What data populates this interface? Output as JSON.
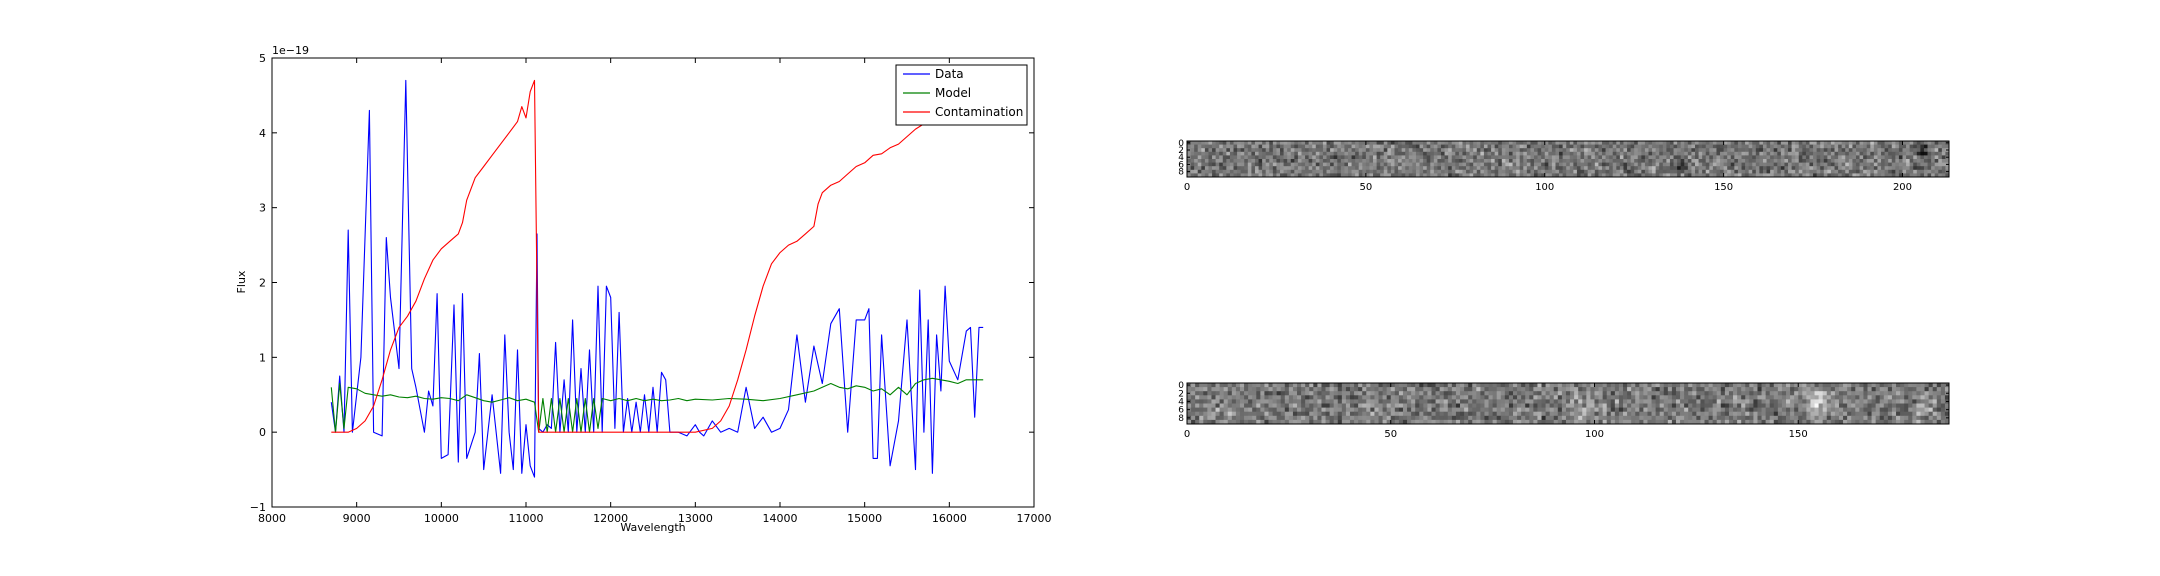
{
  "chart_data": [
    {
      "type": "line",
      "xlabel": "Wavelength",
      "ylabel": "Flux",
      "offset_text": "1e−19",
      "xlim": [
        8000,
        17000
      ],
      "ylim": [
        -1,
        5
      ],
      "xticks": [
        "8000",
        "9000",
        "10000",
        "11000",
        "12000",
        "13000",
        "14000",
        "15000",
        "16000",
        "17000"
      ],
      "yticks": [
        "−1",
        "0",
        "1",
        "2",
        "3",
        "4",
        "5"
      ],
      "legend_placement": "top-right",
      "series": [
        {
          "name": "Data",
          "color": "#0000ff",
          "points": [
            [
              8700,
              0.4
            ],
            [
              8750,
              0.0
            ],
            [
              8800,
              0.75
            ],
            [
              8850,
              0.0
            ],
            [
              8900,
              2.7
            ],
            [
              8950,
              0.0
            ],
            [
              9050,
              1.0
            ],
            [
              9150,
              4.3
            ],
            [
              9200,
              0.0
            ],
            [
              9300,
              -0.05
            ],
            [
              9350,
              2.6
            ],
            [
              9400,
              1.8
            ],
            [
              9500,
              0.85
            ],
            [
              9580,
              4.7
            ],
            [
              9650,
              0.85
            ],
            [
              9700,
              0.6
            ],
            [
              9800,
              0.0
            ],
            [
              9850,
              0.55
            ],
            [
              9900,
              0.35
            ],
            [
              9950,
              1.85
            ],
            [
              10000,
              -0.35
            ],
            [
              10080,
              -0.3
            ],
            [
              10150,
              1.7
            ],
            [
              10200,
              -0.4
            ],
            [
              10250,
              1.85
            ],
            [
              10300,
              -0.35
            ],
            [
              10400,
              0.0
            ],
            [
              10450,
              1.05
            ],
            [
              10500,
              -0.5
            ],
            [
              10600,
              0.5
            ],
            [
              10700,
              -0.55
            ],
            [
              10750,
              1.3
            ],
            [
              10800,
              0.0
            ],
            [
              10850,
              -0.5
            ],
            [
              10900,
              1.1
            ],
            [
              10950,
              -0.55
            ],
            [
              11000,
              0.1
            ],
            [
              11050,
              -0.45
            ],
            [
              11100,
              -0.6
            ],
            [
              11130,
              2.65
            ],
            [
              11150,
              0.05
            ],
            [
              11200,
              0.0
            ],
            [
              11250,
              0.1
            ],
            [
              11300,
              0.05
            ],
            [
              11350,
              1.2
            ],
            [
              11400,
              0.0
            ],
            [
              11450,
              0.7
            ],
            [
              11500,
              0.0
            ],
            [
              11550,
              1.5
            ],
            [
              11600,
              0.0
            ],
            [
              11650,
              0.85
            ],
            [
              11700,
              0.0
            ],
            [
              11750,
              1.1
            ],
            [
              11800,
              0.0
            ],
            [
              11850,
              1.95
            ],
            [
              11900,
              0.0
            ],
            [
              11950,
              1.95
            ],
            [
              12000,
              1.8
            ],
            [
              12050,
              0.05
            ],
            [
              12100,
              1.6
            ],
            [
              12150,
              0.0
            ],
            [
              12200,
              0.45
            ],
            [
              12250,
              0.0
            ],
            [
              12300,
              0.4
            ],
            [
              12350,
              0.0
            ],
            [
              12400,
              0.5
            ],
            [
              12450,
              0.0
            ],
            [
              12500,
              0.6
            ],
            [
              12550,
              0.0
            ],
            [
              12600,
              0.8
            ],
            [
              12650,
              0.7
            ],
            [
              12700,
              0.0
            ],
            [
              12800,
              0.0
            ],
            [
              12900,
              -0.05
            ],
            [
              13000,
              0.1
            ],
            [
              13050,
              0.0
            ],
            [
              13100,
              -0.05
            ],
            [
              13200,
              0.15
            ],
            [
              13300,
              0.0
            ],
            [
              13400,
              0.05
            ],
            [
              13500,
              0.0
            ],
            [
              13600,
              0.6
            ],
            [
              13700,
              0.05
            ],
            [
              13800,
              0.2
            ],
            [
              13900,
              0.0
            ],
            [
              14000,
              0.05
            ],
            [
              14100,
              0.3
            ],
            [
              14200,
              1.3
            ],
            [
              14300,
              0.4
            ],
            [
              14400,
              1.15
            ],
            [
              14500,
              0.65
            ],
            [
              14600,
              1.45
            ],
            [
              14700,
              1.65
            ],
            [
              14800,
              0.0
            ],
            [
              14900,
              1.5
            ],
            [
              15000,
              1.5
            ],
            [
              15050,
              1.65
            ],
            [
              15100,
              -0.35
            ],
            [
              15150,
              -0.35
            ],
            [
              15200,
              1.3
            ],
            [
              15300,
              -0.45
            ],
            [
              15400,
              0.15
            ],
            [
              15500,
              1.5
            ],
            [
              15600,
              -0.5
            ],
            [
              15650,
              1.9
            ],
            [
              15700,
              0.0
            ],
            [
              15750,
              1.5
            ],
            [
              15800,
              -0.55
            ],
            [
              15850,
              1.3
            ],
            [
              15900,
              0.55
            ],
            [
              15950,
              1.95
            ],
            [
              16000,
              0.95
            ],
            [
              16100,
              0.7
            ],
            [
              16200,
              1.35
            ],
            [
              16250,
              1.4
            ],
            [
              16300,
              0.2
            ],
            [
              16350,
              1.4
            ],
            [
              16400,
              1.4
            ]
          ]
        },
        {
          "name": "Model",
          "color": "#008000",
          "points": [
            [
              8700,
              0.6
            ],
            [
              8750,
              0.0
            ],
            [
              8800,
              0.65
            ],
            [
              8850,
              0.05
            ],
            [
              8900,
              0.6
            ],
            [
              9000,
              0.58
            ],
            [
              9100,
              0.52
            ],
            [
              9200,
              0.5
            ],
            [
              9300,
              0.48
            ],
            [
              9400,
              0.5
            ],
            [
              9500,
              0.47
            ],
            [
              9600,
              0.46
            ],
            [
              9700,
              0.48
            ],
            [
              9800,
              0.45
            ],
            [
              9900,
              0.44
            ],
            [
              10000,
              0.46
            ],
            [
              10100,
              0.45
            ],
            [
              10200,
              0.42
            ],
            [
              10300,
              0.5
            ],
            [
              10400,
              0.46
            ],
            [
              10500,
              0.42
            ],
            [
              10600,
              0.4
            ],
            [
              10700,
              0.43
            ],
            [
              10800,
              0.46
            ],
            [
              10900,
              0.42
            ],
            [
              11000,
              0.44
            ],
            [
              11100,
              0.4
            ],
            [
              11150,
              0.0
            ],
            [
              11200,
              0.45
            ],
            [
              11250,
              0.0
            ],
            [
              11300,
              0.45
            ],
            [
              11350,
              0.0
            ],
            [
              11400,
              0.45
            ],
            [
              11450,
              0.0
            ],
            [
              11500,
              0.45
            ],
            [
              11550,
              0.0
            ],
            [
              11600,
              0.45
            ],
            [
              11650,
              0.0
            ],
            [
              11700,
              0.45
            ],
            [
              11750,
              0.0
            ],
            [
              11800,
              0.45
            ],
            [
              11850,
              0.05
            ],
            [
              11900,
              0.45
            ],
            [
              12000,
              0.42
            ],
            [
              12100,
              0.45
            ],
            [
              12200,
              0.42
            ],
            [
              12300,
              0.45
            ],
            [
              12400,
              0.42
            ],
            [
              12500,
              0.44
            ],
            [
              12600,
              0.42
            ],
            [
              12700,
              0.43
            ],
            [
              12800,
              0.45
            ],
            [
              12900,
              0.42
            ],
            [
              13000,
              0.44
            ],
            [
              13200,
              0.43
            ],
            [
              13400,
              0.45
            ],
            [
              13600,
              0.44
            ],
            [
              13800,
              0.42
            ],
            [
              14000,
              0.45
            ],
            [
              14200,
              0.5
            ],
            [
              14400,
              0.55
            ],
            [
              14500,
              0.6
            ],
            [
              14600,
              0.65
            ],
            [
              14700,
              0.6
            ],
            [
              14800,
              0.58
            ],
            [
              14900,
              0.62
            ],
            [
              15000,
              0.6
            ],
            [
              15100,
              0.55
            ],
            [
              15200,
              0.58
            ],
            [
              15300,
              0.5
            ],
            [
              15400,
              0.6
            ],
            [
              15500,
              0.5
            ],
            [
              15600,
              0.65
            ],
            [
              15700,
              0.7
            ],
            [
              15800,
              0.72
            ],
            [
              15900,
              0.7
            ],
            [
              16000,
              0.68
            ],
            [
              16100,
              0.65
            ],
            [
              16200,
              0.7
            ],
            [
              16300,
              0.7
            ],
            [
              16400,
              0.7
            ]
          ]
        },
        {
          "name": "Contamination",
          "color": "#ff0000",
          "points": [
            [
              8700,
              0.0
            ],
            [
              8800,
              0.0
            ],
            [
              8900,
              0.0
            ],
            [
              9000,
              0.05
            ],
            [
              9100,
              0.15
            ],
            [
              9200,
              0.35
            ],
            [
              9300,
              0.7
            ],
            [
              9400,
              1.1
            ],
            [
              9500,
              1.4
            ],
            [
              9600,
              1.55
            ],
            [
              9700,
              1.75
            ],
            [
              9800,
              2.05
            ],
            [
              9900,
              2.3
            ],
            [
              10000,
              2.45
            ],
            [
              10100,
              2.55
            ],
            [
              10200,
              2.65
            ],
            [
              10250,
              2.8
            ],
            [
              10300,
              3.1
            ],
            [
              10400,
              3.4
            ],
            [
              10500,
              3.55
            ],
            [
              10600,
              3.7
            ],
            [
              10700,
              3.85
            ],
            [
              10800,
              4.0
            ],
            [
              10900,
              4.15
            ],
            [
              10950,
              4.35
            ],
            [
              11000,
              4.2
            ],
            [
              11050,
              4.55
            ],
            [
              11100,
              4.7
            ],
            [
              11150,
              0.0
            ],
            [
              11400,
              0.0
            ],
            [
              11800,
              0.0
            ],
            [
              12200,
              0.0
            ],
            [
              12600,
              0.0
            ],
            [
              13000,
              0.0
            ],
            [
              13200,
              0.05
            ],
            [
              13300,
              0.15
            ],
            [
              13400,
              0.35
            ],
            [
              13500,
              0.7
            ],
            [
              13600,
              1.1
            ],
            [
              13700,
              1.55
            ],
            [
              13800,
              1.95
            ],
            [
              13900,
              2.25
            ],
            [
              14000,
              2.4
            ],
            [
              14100,
              2.5
            ],
            [
              14200,
              2.55
            ],
            [
              14300,
              2.65
            ],
            [
              14400,
              2.75
            ],
            [
              14450,
              3.05
            ],
            [
              14500,
              3.2
            ],
            [
              14600,
              3.3
            ],
            [
              14700,
              3.35
            ],
            [
              14800,
              3.45
            ],
            [
              14900,
              3.55
            ],
            [
              15000,
              3.6
            ],
            [
              15100,
              3.7
            ],
            [
              15200,
              3.72
            ],
            [
              15300,
              3.8
            ],
            [
              15400,
              3.85
            ],
            [
              15500,
              3.95
            ],
            [
              15600,
              4.05
            ],
            [
              15700,
              4.12
            ],
            [
              15800,
              4.2
            ],
            [
              15900,
              4.3
            ],
            [
              16000,
              4.35
            ],
            [
              16100,
              4.45
            ],
            [
              16200,
              4.55
            ],
            [
              16300,
              4.65
            ],
            [
              16400,
              4.72
            ]
          ]
        }
      ]
    },
    {
      "type": "heatmap",
      "colormap": "gray",
      "xlim": [
        0,
        213
      ],
      "ylim": [
        10,
        0
      ],
      "xticks": [
        "0",
        "50",
        "100",
        "150",
        "200"
      ],
      "yticks": [
        "0",
        "2",
        "4",
        "6",
        "8"
      ]
    },
    {
      "type": "heatmap",
      "colormap": "gray",
      "xlim": [
        0,
        187
      ],
      "ylim": [
        10,
        0
      ],
      "xticks": [
        "0",
        "50",
        "100",
        "150"
      ],
      "yticks": [
        "0",
        "2",
        "4",
        "6",
        "8"
      ]
    }
  ]
}
